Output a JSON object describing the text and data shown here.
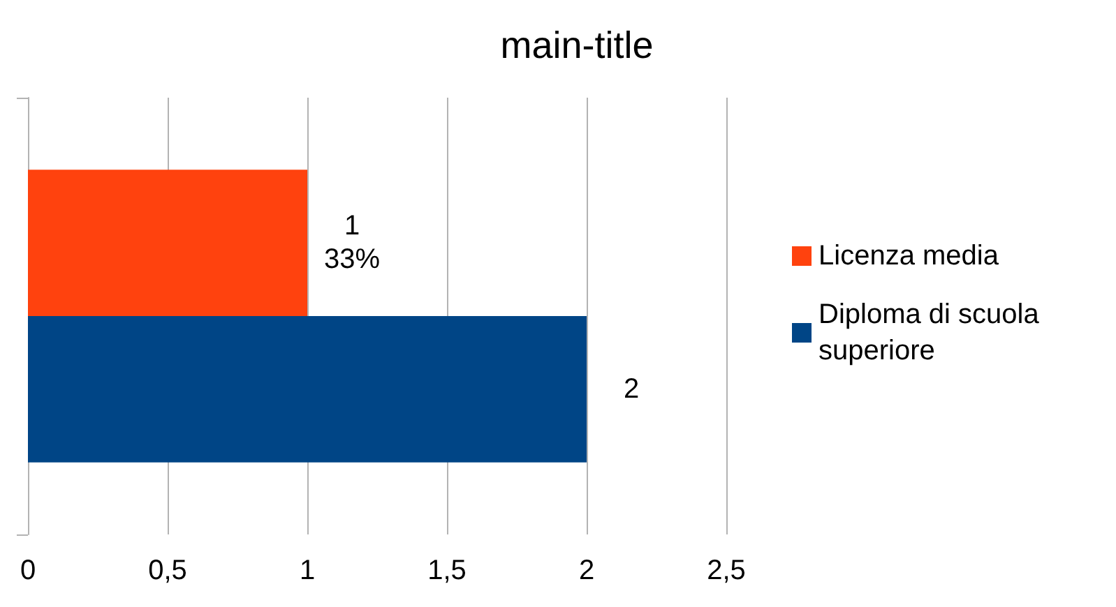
{
  "chart_data": {
    "type": "bar",
    "title": "main-title",
    "orientation": "horizontal",
    "categories": [
      null
    ],
    "series": [
      {
        "name": "Licenza media",
        "color": "#ff420e",
        "values": [
          1
        ],
        "value_labels": [
          "1\n33%"
        ]
      },
      {
        "name": "Diploma di scuola superiore",
        "color": "#004586",
        "values": [
          2
        ],
        "value_labels": [
          "2"
        ]
      }
    ],
    "xlim": [
      0,
      2.5
    ],
    "xticks": [
      0,
      {
        "value": 0.5,
        "label": "0,5"
      },
      1,
      {
        "value": 1.5,
        "label": "1,5"
      },
      2,
      {
        "value": 2.5,
        "label": "2,5"
      }
    ],
    "grid": "x",
    "legend": "right"
  }
}
